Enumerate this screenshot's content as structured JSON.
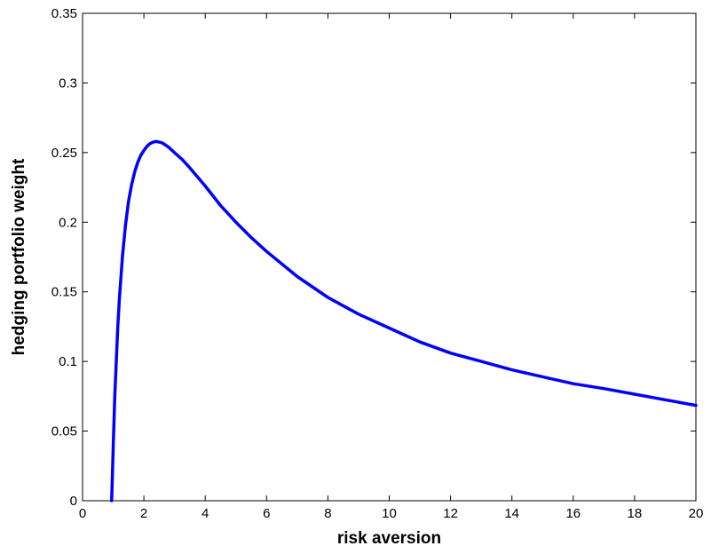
{
  "chart_data": {
    "type": "line",
    "title": "",
    "xlabel": "risk aversion",
    "ylabel": "hedging portfolio weight",
    "xlim": [
      0,
      20
    ],
    "ylim": [
      0,
      0.35
    ],
    "xticks": [
      "0",
      "2",
      "4",
      "6",
      "8",
      "10",
      "12",
      "14",
      "16",
      "18",
      "20"
    ],
    "yticks": [
      "0",
      "0.05",
      "0.1",
      "0.15",
      "0.2",
      "0.25",
      "0.3",
      "0.35"
    ],
    "grid": false,
    "series": [
      {
        "color": "#0000ff",
        "x": [
          0.95,
          1.0,
          1.05,
          1.1,
          1.15,
          1.2,
          1.3,
          1.4,
          1.5,
          1.6,
          1.7,
          1.8,
          1.9,
          2.0,
          2.1,
          2.2,
          2.3,
          2.4,
          2.5,
          2.6,
          2.8,
          3.0,
          3.25,
          3.5,
          4.0,
          4.5,
          5.0,
          5.5,
          6.0,
          7.0,
          8.0,
          9.0,
          10.0,
          11.0,
          12.0,
          13.0,
          14.0,
          15.0,
          16.0,
          17.0,
          18.0,
          19.0,
          20.0
        ],
        "y": [
          0.0,
          0.04,
          0.075,
          0.1,
          0.125,
          0.145,
          0.175,
          0.198,
          0.215,
          0.227,
          0.236,
          0.243,
          0.248,
          0.2515,
          0.2545,
          0.2565,
          0.2575,
          0.258,
          0.2575,
          0.257,
          0.254,
          0.25,
          0.245,
          0.239,
          0.226,
          0.212,
          0.2,
          0.189,
          0.179,
          0.161,
          0.146,
          0.134,
          0.124,
          0.114,
          0.106,
          0.1,
          0.094,
          0.089,
          0.084,
          0.0805,
          0.0765,
          0.0725,
          0.0685
        ]
      }
    ]
  }
}
